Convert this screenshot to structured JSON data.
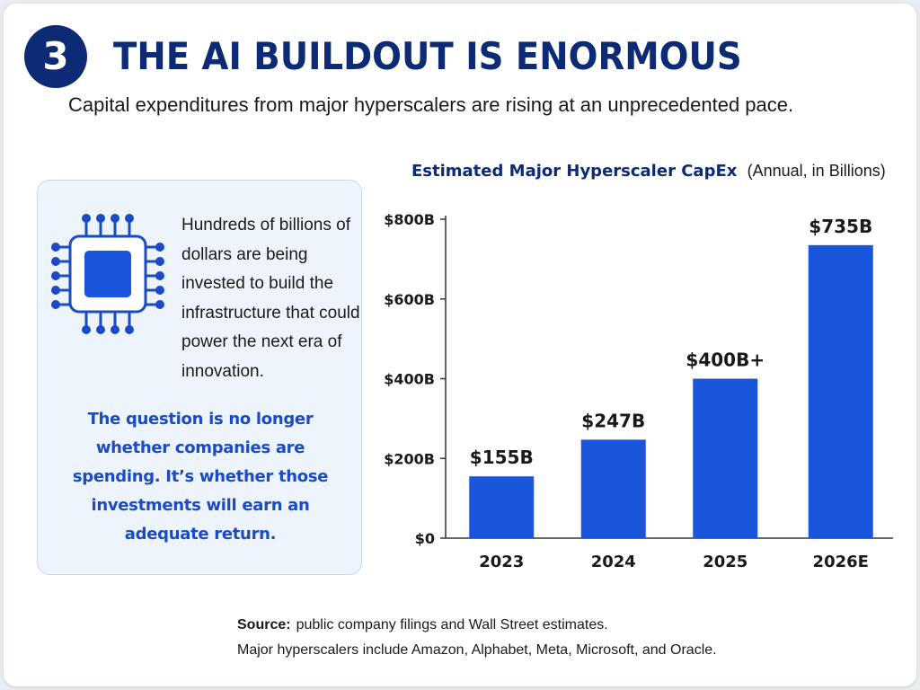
{
  "header": {
    "badge_number": "3",
    "title": "THE AI BUILDOUT IS ENORMOUS",
    "subtitle": "Capital expenditures from major hyperscalers are rising at an unprecedented pace."
  },
  "info_panel": {
    "icon": "chip-icon",
    "text": "Hundreds of billions of dollars are being invested to build the infrastructure that could power the next era of innovation.",
    "quote": "The question is no longer whether companies are spending. It’s whether those investments will earn an adequate return."
  },
  "chart_data": {
    "type": "bar",
    "title": "Estimated Major Hyperscaler CapEx",
    "subtitle": "(Annual, in Billions)",
    "categories": [
      "2023",
      "2024",
      "2025",
      "2026E"
    ],
    "values": [
      155,
      247,
      400,
      735
    ],
    "data_labels": [
      "$155B",
      "$247B",
      "$400B+",
      "$735B"
    ],
    "ylim": [
      0,
      800
    ],
    "yticks": [
      0,
      200,
      400,
      600,
      800
    ],
    "ytick_labels": [
      "$0",
      "$200B",
      "$400B",
      "$600B",
      "$800B"
    ],
    "grid": false,
    "legend": "none",
    "bar_color": "#1a56db"
  },
  "footer": {
    "source_label": "Source:",
    "source_text": "public company filings and Wall Street estimates.",
    "note": "Major hyperscalers include Amazon, Alphabet, Meta, Microsoft, and Oracle."
  },
  "colors": {
    "navy": "#0d2a74",
    "accent_blue": "#1a56db",
    "quote_blue": "#1a4bc4",
    "panel_bg": "#eef4fc"
  }
}
